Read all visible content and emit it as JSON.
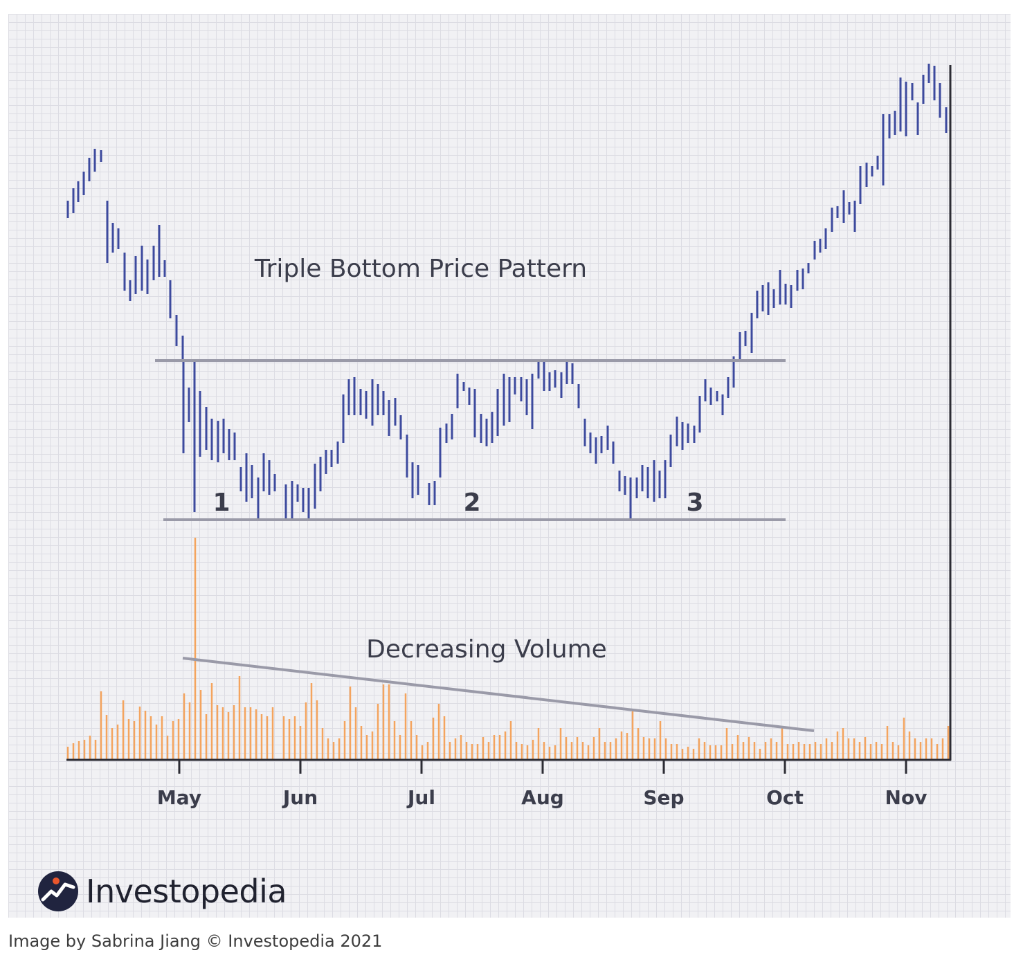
{
  "chart_data": {
    "type": "bar",
    "title": "Triple Bottom Price Pattern",
    "volume_label": "Decreasing Volume",
    "x_tick_labels": [
      "May",
      "Jun",
      "Jul",
      "Aug",
      "Sep",
      "Oct",
      "Nov"
    ],
    "bottom_labels": [
      "1",
      "2",
      "3"
    ],
    "price_series_note": "",
    "volume_series_note": "",
    "colors": {
      "price": "#3d4a9e",
      "volume": "#f4a45e",
      "levels": "#9a9aa8",
      "axis": "#2c2c34"
    },
    "price_bars": [
      [
        98,
        315,
        290
      ],
      [
        106,
        308,
        272
      ],
      [
        113,
        292,
        262
      ],
      [
        121,
        282,
        248
      ],
      [
        129,
        262,
        228
      ],
      [
        137,
        248,
        215
      ],
      [
        146,
        234,
        217
      ],
      [
        155,
        380,
        290
      ],
      [
        163,
        365,
        322
      ],
      [
        171,
        360,
        330
      ],
      [
        180,
        420,
        365
      ],
      [
        188,
        435,
        405
      ],
      [
        196,
        425,
        370
      ],
      [
        205,
        420,
        355
      ],
      [
        213,
        425,
        375
      ],
      [
        222,
        405,
        355
      ],
      [
        230,
        400,
        325
      ],
      [
        238,
        400,
        376
      ],
      [
        246,
        460,
        405
      ],
      [
        255,
        500,
        455
      ],
      [
        264,
        520,
        485
      ],
      [
        265,
        655,
        520
      ],
      [
        273,
        610,
        560
      ],
      [
        281,
        740,
        520
      ],
      [
        289,
        660,
        565
      ],
      [
        298,
        650,
        588
      ],
      [
        306,
        665,
        605
      ],
      [
        315,
        668,
        608
      ],
      [
        323,
        655,
        605
      ],
      [
        331,
        665,
        620
      ],
      [
        339,
        665,
        625
      ],
      [
        348,
        710,
        675
      ],
      [
        356,
        725,
        655
      ],
      [
        364,
        720,
        672
      ],
      [
        373,
        750,
        690
      ],
      [
        381,
        710,
        655
      ],
      [
        389,
        715,
        665
      ],
      [
        397,
        710,
        685
      ],
      [
        413,
        750,
        700
      ],
      [
        422,
        750,
        695
      ],
      [
        430,
        725,
        700
      ],
      [
        438,
        740,
        705
      ],
      [
        446,
        750,
        705
      ],
      [
        455,
        735,
        670
      ],
      [
        463,
        710,
        660
      ],
      [
        471,
        685,
        650
      ],
      [
        479,
        675,
        650
      ],
      [
        488,
        670,
        638
      ],
      [
        496,
        640,
        570
      ],
      [
        504,
        600,
        548
      ],
      [
        512,
        600,
        545
      ],
      [
        521,
        600,
        562
      ],
      [
        529,
        605,
        565
      ],
      [
        538,
        615,
        548
      ],
      [
        546,
        600,
        555
      ],
      [
        554,
        600,
        565
      ],
      [
        562,
        630,
        578
      ],
      [
        571,
        615,
        575
      ],
      [
        579,
        635,
        600
      ],
      [
        588,
        690,
        628
      ],
      [
        596,
        720,
        668
      ],
      [
        604,
        715,
        672
      ],
      [
        620,
        730,
        698
      ],
      [
        628,
        730,
        695
      ],
      [
        636,
        690,
        618
      ],
      [
        645,
        640,
        612
      ],
      [
        653,
        635,
        598
      ],
      [
        661,
        590,
        540
      ],
      [
        670,
        565,
        552
      ],
      [
        678,
        585,
        560
      ],
      [
        686,
        632,
        562
      ],
      [
        695,
        640,
        598
      ],
      [
        703,
        645,
        605
      ],
      [
        711,
        640,
        595
      ],
      [
        719,
        630,
        562
      ],
      [
        728,
        615,
        540
      ],
      [
        736,
        610,
        545
      ],
      [
        744,
        570,
        545
      ],
      [
        753,
        580,
        545
      ],
      [
        761,
        600,
        548
      ],
      [
        769,
        620,
        540
      ],
      [
        778,
        547,
        520
      ],
      [
        786,
        565,
        520
      ],
      [
        794,
        565,
        538
      ],
      [
        802,
        560,
        535
      ],
      [
        811,
        575,
        538
      ],
      [
        819,
        555,
        520
      ],
      [
        827,
        555,
        525
      ],
      [
        836,
        590,
        555
      ],
      [
        845,
        645,
        605
      ],
      [
        853,
        655,
        625
      ],
      [
        861,
        670,
        632
      ],
      [
        869,
        655,
        630
      ],
      [
        878,
        650,
        615
      ],
      [
        886,
        670,
        638
      ],
      [
        895,
        710,
        680
      ],
      [
        903,
        715,
        688
      ],
      [
        911,
        750,
        690
      ],
      [
        920,
        720,
        690
      ],
      [
        928,
        710,
        672
      ],
      [
        936,
        720,
        675
      ],
      [
        945,
        725,
        665
      ],
      [
        953,
        720,
        680
      ],
      [
        961,
        720,
        665
      ],
      [
        969,
        675,
        628
      ],
      [
        978,
        645,
        602
      ],
      [
        986,
        650,
        610
      ],
      [
        994,
        640,
        612
      ],
      [
        1003,
        640,
        615
      ],
      [
        1011,
        625,
        572
      ],
      [
        1019,
        580,
        548
      ],
      [
        1027,
        585,
        560
      ],
      [
        1036,
        580,
        565
      ],
      [
        1044,
        600,
        570
      ],
      [
        1052,
        575,
        545
      ],
      [
        1060,
        560,
        515
      ],
      [
        1069,
        520,
        480
      ],
      [
        1077,
        500,
        478
      ],
      [
        1086,
        510,
        452
      ],
      [
        1094,
        460,
        420
      ],
      [
        1102,
        450,
        412
      ],
      [
        1110,
        455,
        408
      ],
      [
        1118,
        445,
        418
      ],
      [
        1127,
        440,
        390
      ],
      [
        1135,
        440,
        410
      ],
      [
        1143,
        445,
        412
      ],
      [
        1152,
        420,
        390
      ],
      [
        1160,
        418,
        388
      ],
      [
        1168,
        395,
        380
      ],
      [
        1177,
        375,
        348
      ],
      [
        1185,
        365,
        345
      ],
      [
        1193,
        360,
        330
      ],
      [
        1202,
        335,
        300
      ],
      [
        1210,
        315,
        298
      ],
      [
        1219,
        322,
        275
      ],
      [
        1227,
        310,
        292
      ],
      [
        1235,
        335,
        290
      ],
      [
        1243,
        295,
        240
      ],
      [
        1252,
        270,
        235
      ],
      [
        1260,
        255,
        240
      ],
      [
        1268,
        245,
        225
      ],
      [
        1276,
        268,
        165
      ],
      [
        1285,
        200,
        165
      ],
      [
        1293,
        195,
        160
      ],
      [
        1301,
        190,
        112
      ],
      [
        1309,
        197,
        118
      ],
      [
        1318,
        145,
        120
      ],
      [
        1326,
        195,
        148
      ],
      [
        1334,
        150,
        108
      ],
      [
        1342,
        120,
        92
      ],
      [
        1350,
        145,
        95
      ],
      [
        1358,
        170,
        120
      ],
      [
        1367,
        192,
        155
      ]
    ],
    "volume_bars": [
      [
        98,
        18
      ],
      [
        106,
        23
      ],
      [
        114,
        26
      ],
      [
        122,
        28
      ],
      [
        130,
        34
      ],
      [
        138,
        28
      ],
      [
        146,
        98
      ],
      [
        154,
        64
      ],
      [
        162,
        45
      ],
      [
        170,
        50
      ],
      [
        178,
        85
      ],
      [
        186,
        58
      ],
      [
        194,
        55
      ],
      [
        202,
        76
      ],
      [
        210,
        70
      ],
      [
        218,
        62
      ],
      [
        226,
        50
      ],
      [
        234,
        62
      ],
      [
        242,
        34
      ],
      [
        250,
        55
      ],
      [
        258,
        58
      ],
      [
        266,
        95
      ],
      [
        274,
        82
      ],
      [
        282,
        320
      ],
      [
        290,
        100
      ],
      [
        298,
        65
      ],
      [
        306,
        110
      ],
      [
        314,
        78
      ],
      [
        322,
        75
      ],
      [
        330,
        68
      ],
      [
        338,
        78
      ],
      [
        346,
        120
      ],
      [
        354,
        75
      ],
      [
        362,
        75
      ],
      [
        370,
        72
      ],
      [
        378,
        65
      ],
      [
        386,
        62
      ],
      [
        394,
        75
      ],
      [
        410,
        62
      ],
      [
        418,
        58
      ],
      [
        426,
        62
      ],
      [
        434,
        48
      ],
      [
        442,
        82
      ],
      [
        450,
        110
      ],
      [
        458,
        85
      ],
      [
        466,
        45
      ],
      [
        474,
        30
      ],
      [
        482,
        25
      ],
      [
        490,
        30
      ],
      [
        498,
        55
      ],
      [
        506,
        105
      ],
      [
        514,
        75
      ],
      [
        522,
        48
      ],
      [
        530,
        35
      ],
      [
        538,
        40
      ],
      [
        546,
        80
      ],
      [
        554,
        108
      ],
      [
        562,
        108
      ],
      [
        570,
        55
      ],
      [
        578,
        35
      ],
      [
        586,
        95
      ],
      [
        594,
        55
      ],
      [
        602,
        35
      ],
      [
        610,
        20
      ],
      [
        618,
        25
      ],
      [
        626,
        60
      ],
      [
        634,
        80
      ],
      [
        642,
        62
      ],
      [
        650,
        25
      ],
      [
        658,
        30
      ],
      [
        666,
        35
      ],
      [
        674,
        25
      ],
      [
        682,
        22
      ],
      [
        690,
        22
      ],
      [
        698,
        32
      ],
      [
        706,
        25
      ],
      [
        714,
        35
      ],
      [
        722,
        35
      ],
      [
        730,
        40
      ],
      [
        738,
        55
      ],
      [
        746,
        25
      ],
      [
        754,
        22
      ],
      [
        762,
        20
      ],
      [
        770,
        28
      ],
      [
        778,
        45
      ],
      [
        786,
        25
      ],
      [
        794,
        18
      ],
      [
        802,
        20
      ],
      [
        810,
        45
      ],
      [
        818,
        32
      ],
      [
        826,
        25
      ],
      [
        834,
        32
      ],
      [
        842,
        25
      ],
      [
        850,
        20
      ],
      [
        858,
        32
      ],
      [
        866,
        45
      ],
      [
        874,
        25
      ],
      [
        882,
        25
      ],
      [
        890,
        30
      ],
      [
        898,
        40
      ],
      [
        906,
        38
      ],
      [
        914,
        70
      ],
      [
        922,
        45
      ],
      [
        930,
        32
      ],
      [
        938,
        30
      ],
      [
        946,
        30
      ],
      [
        954,
        55
      ],
      [
        962,
        30
      ],
      [
        970,
        22
      ],
      [
        978,
        22
      ],
      [
        986,
        15
      ],
      [
        994,
        18
      ],
      [
        1002,
        15
      ],
      [
        1010,
        30
      ],
      [
        1018,
        25
      ],
      [
        1026,
        20
      ],
      [
        1034,
        20
      ],
      [
        1042,
        20
      ],
      [
        1050,
        45
      ],
      [
        1058,
        22
      ],
      [
        1066,
        35
      ],
      [
        1074,
        25
      ],
      [
        1082,
        32
      ],
      [
        1090,
        25
      ],
      [
        1098,
        15
      ],
      [
        1106,
        25
      ],
      [
        1114,
        30
      ],
      [
        1122,
        25
      ],
      [
        1130,
        45
      ],
      [
        1138,
        22
      ],
      [
        1146,
        22
      ],
      [
        1154,
        25
      ],
      [
        1162,
        22
      ],
      [
        1170,
        22
      ],
      [
        1178,
        25
      ],
      [
        1186,
        22
      ],
      [
        1194,
        30
      ],
      [
        1202,
        25
      ],
      [
        1210,
        40
      ],
      [
        1218,
        45
      ],
      [
        1226,
        30
      ],
      [
        1234,
        30
      ],
      [
        1242,
        25
      ],
      [
        1250,
        32
      ],
      [
        1258,
        22
      ],
      [
        1266,
        25
      ],
      [
        1274,
        22
      ],
      [
        1282,
        48
      ],
      [
        1290,
        25
      ],
      [
        1298,
        20
      ],
      [
        1306,
        60
      ],
      [
        1314,
        40
      ],
      [
        1322,
        30
      ],
      [
        1330,
        25
      ],
      [
        1338,
        30
      ],
      [
        1346,
        30
      ],
      [
        1354,
        22
      ],
      [
        1362,
        30
      ],
      [
        1370,
        48
      ]
    ]
  },
  "branding": {
    "logo_name": "Investopedia",
    "caption": "Image by Sabrina Jiang © Investopedia 2021"
  }
}
